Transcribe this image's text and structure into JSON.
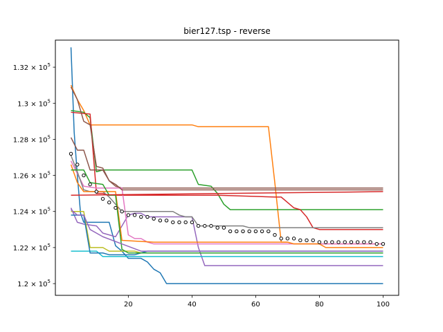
{
  "chart_data": {
    "type": "line",
    "title": "bier127.tsp - reverse",
    "xlabel": "",
    "ylabel": "",
    "xlim": [
      -2.9,
      104.9
    ],
    "ylim": [
      119350,
      133500
    ],
    "x_ticks": [
      {
        "value": 20,
        "label": "20"
      },
      {
        "value": 40,
        "label": "40"
      },
      {
        "value": 60,
        "label": "60"
      },
      {
        "value": 80,
        "label": "80"
      },
      {
        "value": 100,
        "label": "100"
      }
    ],
    "y_ticks": [
      {
        "value": 120000,
        "mantissa": "1.2",
        "exp": "5"
      },
      {
        "value": 122000,
        "mantissa": "1.22",
        "exp": "5"
      },
      {
        "value": 124000,
        "mantissa": "1.24",
        "exp": "5"
      },
      {
        "value": 126000,
        "mantissa": "1.26",
        "exp": "5"
      },
      {
        "value": 128000,
        "mantissa": "1.28",
        "exp": "5"
      },
      {
        "value": 130000,
        "mantissa": "1.3",
        "exp": "5"
      },
      {
        "value": 132000,
        "mantissa": "1.32",
        "exp": "5"
      }
    ],
    "grid": false,
    "series": [
      {
        "color": "#1f77b4",
        "points": [
          [
            2,
            133100
          ],
          [
            3,
            128400
          ],
          [
            4,
            126000
          ],
          [
            5,
            123900
          ],
          [
            6,
            123400
          ],
          [
            14,
            123400
          ],
          [
            16,
            122100
          ],
          [
            18,
            121800
          ],
          [
            20,
            121400
          ],
          [
            24,
            121400
          ],
          [
            26,
            121200
          ],
          [
            28,
            120800
          ],
          [
            30,
            120600
          ],
          [
            32,
            120000
          ],
          [
            100,
            120000
          ]
        ]
      },
      {
        "color": "#ff7f0e",
        "points": [
          [
            2,
            131000
          ],
          [
            4,
            130200
          ],
          [
            6,
            129600
          ],
          [
            8,
            128800
          ],
          [
            40,
            128800
          ],
          [
            42,
            128700
          ],
          [
            64,
            128700
          ],
          [
            66,
            125600
          ],
          [
            68,
            122300
          ],
          [
            70,
            122300
          ],
          [
            72,
            122200
          ],
          [
            100,
            122200
          ]
        ]
      },
      {
        "color": "#2ca02c",
        "points": [
          [
            2,
            129600
          ],
          [
            6,
            129500
          ],
          [
            8,
            129200
          ],
          [
            10,
            126200
          ],
          [
            12,
            126300
          ],
          [
            40,
            126300
          ],
          [
            42,
            125500
          ],
          [
            46,
            125400
          ],
          [
            48,
            125000
          ],
          [
            50,
            124400
          ],
          [
            52,
            124100
          ],
          [
            100,
            124100
          ]
        ]
      },
      {
        "color": "#d62728",
        "points": [
          [
            2,
            129500
          ],
          [
            8,
            129400
          ],
          [
            10,
            125000
          ],
          [
            12,
            125000
          ],
          [
            14,
            124900
          ],
          [
            48,
            124900
          ],
          [
            66,
            124800
          ],
          [
            68,
            124800
          ],
          [
            70,
            124500
          ],
          [
            72,
            124200
          ],
          [
            74,
            124100
          ],
          [
            76,
            123700
          ],
          [
            78,
            123100
          ],
          [
            80,
            123000
          ],
          [
            100,
            123000
          ]
        ]
      },
      {
        "color": "#9467bd",
        "points": [
          [
            2,
            124200
          ],
          [
            4,
            123400
          ],
          [
            6,
            123300
          ],
          [
            10,
            123200
          ],
          [
            12,
            122800
          ],
          [
            16,
            122600
          ],
          [
            20,
            123800
          ],
          [
            22,
            123900
          ],
          [
            24,
            123900
          ],
          [
            26,
            123700
          ],
          [
            40,
            123700
          ],
          [
            42,
            122000
          ],
          [
            44,
            121000
          ],
          [
            100,
            121000
          ]
        ]
      },
      {
        "color": "#8c564b",
        "points": [
          [
            2,
            128100
          ],
          [
            4,
            127400
          ],
          [
            6,
            127400
          ],
          [
            8,
            126300
          ],
          [
            12,
            126300
          ],
          [
            14,
            125700
          ],
          [
            16,
            125400
          ],
          [
            18,
            125300
          ],
          [
            26,
            125300
          ],
          [
            100,
            125300
          ]
        ]
      },
      {
        "color": "#e377c2",
        "points": [
          [
            2,
            126800
          ],
          [
            4,
            126100
          ],
          [
            6,
            125400
          ],
          [
            10,
            125300
          ],
          [
            18,
            125300
          ],
          [
            20,
            122700
          ],
          [
            22,
            122500
          ],
          [
            24,
            122500
          ],
          [
            26,
            122300
          ],
          [
            28,
            122200
          ],
          [
            100,
            122200
          ]
        ]
      },
      {
        "color": "#7f7f7f",
        "points": [
          [
            2,
            127100
          ],
          [
            4,
            126200
          ],
          [
            6,
            125200
          ],
          [
            8,
            125100
          ],
          [
            12,
            125100
          ],
          [
            14,
            124800
          ],
          [
            18,
            124000
          ],
          [
            34,
            124000
          ],
          [
            36,
            123800
          ],
          [
            38,
            123700
          ],
          [
            40,
            123700
          ],
          [
            42,
            123200
          ],
          [
            56,
            123200
          ],
          [
            58,
            123100
          ],
          [
            100,
            123100
          ]
        ]
      },
      {
        "color": "#bcbd22",
        "points": [
          [
            2,
            124000
          ],
          [
            6,
            124000
          ],
          [
            8,
            122000
          ],
          [
            12,
            122000
          ],
          [
            14,
            121800
          ],
          [
            22,
            121800
          ],
          [
            24,
            121700
          ],
          [
            100,
            121700
          ]
        ]
      },
      {
        "color": "#17becf",
        "points": [
          [
            2,
            121800
          ],
          [
            10,
            121800
          ],
          [
            12,
            121500
          ],
          [
            16,
            121500
          ],
          [
            100,
            121500
          ]
        ]
      },
      {
        "color": "#1f77b4",
        "points": [
          [
            2,
            123800
          ],
          [
            6,
            123800
          ],
          [
            8,
            121700
          ],
          [
            12,
            121700
          ],
          [
            14,
            121600
          ],
          [
            22,
            121600
          ],
          [
            26,
            121800
          ],
          [
            100,
            121800
          ]
        ]
      },
      {
        "color": "#ff7f0e",
        "points": [
          [
            2,
            126600
          ],
          [
            4,
            125600
          ],
          [
            6,
            125100
          ],
          [
            16,
            125100
          ],
          [
            18,
            122400
          ],
          [
            28,
            122300
          ],
          [
            38,
            122300
          ],
          [
            40,
            122300
          ],
          [
            60,
            122300
          ],
          [
            70,
            122300
          ],
          [
            72,
            122200
          ],
          [
            80,
            122200
          ],
          [
            82,
            122000
          ],
          [
            100,
            122000
          ]
        ]
      },
      {
        "color": "#2ca02c",
        "points": [
          [
            2,
            126300
          ],
          [
            6,
            126300
          ],
          [
            8,
            125600
          ],
          [
            12,
            125500
          ],
          [
            14,
            124900
          ],
          [
            16,
            124900
          ],
          [
            18,
            121900
          ],
          [
            20,
            121700
          ],
          [
            24,
            121700
          ],
          [
            100,
            121700
          ]
        ]
      },
      {
        "color": "#d62728",
        "points": [
          [
            2,
            124900
          ],
          [
            100,
            125100
          ]
        ]
      },
      {
        "color": "#9467bd",
        "points": [
          [
            2,
            124100
          ],
          [
            4,
            123800
          ],
          [
            6,
            123800
          ],
          [
            8,
            123000
          ],
          [
            12,
            122600
          ],
          [
            18,
            122200
          ],
          [
            24,
            121800
          ],
          [
            100,
            121800
          ]
        ]
      },
      {
        "color": "#8c564b",
        "points": [
          [
            2,
            130900
          ],
          [
            4,
            130200
          ],
          [
            6,
            129000
          ],
          [
            8,
            128800
          ],
          [
            10,
            126500
          ],
          [
            12,
            126400
          ],
          [
            14,
            125700
          ],
          [
            16,
            125500
          ],
          [
            18,
            125200
          ],
          [
            100,
            125200
          ]
        ]
      }
    ],
    "mean_markers": [
      [
        2,
        127200
      ],
      [
        4,
        126600
      ],
      [
        6,
        126000
      ],
      [
        8,
        125500
      ],
      [
        10,
        125100
      ],
      [
        12,
        124700
      ],
      [
        14,
        124500
      ],
      [
        16,
        124200
      ],
      [
        18,
        124000
      ],
      [
        20,
        123800
      ],
      [
        22,
        123800
      ],
      [
        24,
        123700
      ],
      [
        26,
        123700
      ],
      [
        28,
        123600
      ],
      [
        30,
        123500
      ],
      [
        32,
        123500
      ],
      [
        34,
        123400
      ],
      [
        36,
        123400
      ],
      [
        38,
        123400
      ],
      [
        40,
        123400
      ],
      [
        42,
        123200
      ],
      [
        44,
        123200
      ],
      [
        46,
        123200
      ],
      [
        48,
        123100
      ],
      [
        50,
        123100
      ],
      [
        52,
        122900
      ],
      [
        54,
        122900
      ],
      [
        56,
        122900
      ],
      [
        58,
        122900
      ],
      [
        60,
        122900
      ],
      [
        62,
        122900
      ],
      [
        64,
        122900
      ],
      [
        66,
        122700
      ],
      [
        68,
        122500
      ],
      [
        70,
        122500
      ],
      [
        72,
        122500
      ],
      [
        74,
        122400
      ],
      [
        76,
        122400
      ],
      [
        78,
        122400
      ],
      [
        80,
        122300
      ],
      [
        82,
        122300
      ],
      [
        84,
        122300
      ],
      [
        86,
        122300
      ],
      [
        88,
        122300
      ],
      [
        90,
        122300
      ],
      [
        92,
        122300
      ],
      [
        94,
        122300
      ],
      [
        96,
        122300
      ],
      [
        98,
        122200
      ],
      [
        100,
        122200
      ]
    ]
  }
}
